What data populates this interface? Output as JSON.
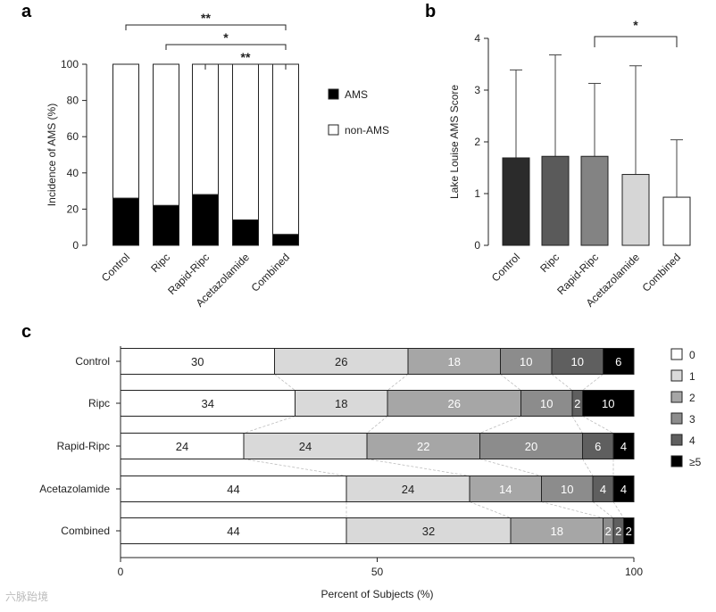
{
  "panel_labels": [
    "a",
    "b",
    "c"
  ],
  "watermark": "六脉跆境",
  "chart_data": [
    {
      "panel": "a",
      "type": "bar",
      "stacked": true,
      "categories": [
        "Control",
        "Ripc",
        "Rapid-Ripc",
        "Acetazolamide",
        "Combined"
      ],
      "series": [
        {
          "name": "AMS",
          "values": [
            26,
            22,
            28,
            14,
            6
          ],
          "color": "#000000"
        },
        {
          "name": "non-AMS",
          "values": [
            74,
            78,
            72,
            86,
            94
          ],
          "color": "#ffffff"
        }
      ],
      "ylabel": "Incidence of AMS (%)",
      "ylim": [
        0,
        100
      ],
      "yticks": [
        0,
        20,
        40,
        60,
        80,
        100
      ],
      "legend": [
        "AMS",
        "non-AMS"
      ],
      "significance": [
        {
          "from": "Control",
          "to": "Combined",
          "label": "**"
        },
        {
          "from": "Ripc",
          "to": "Combined",
          "label": "*"
        },
        {
          "from": "Rapid-Ripc",
          "to": "Combined",
          "label": "**"
        }
      ]
    },
    {
      "panel": "b",
      "type": "bar",
      "categories": [
        "Control",
        "Ripc",
        "Rapid-Ripc",
        "Acetazolamide",
        "Combined"
      ],
      "values": [
        1.69,
        1.72,
        1.72,
        1.37,
        0.93
      ],
      "errors_upper": [
        3.39,
        3.68,
        3.13,
        3.47,
        2.04
      ],
      "colors": [
        "#2b2b2b",
        "#5a5a5a",
        "#838383",
        "#d6d6d6",
        "#ffffff"
      ],
      "ylabel": "Lake Louise AMS Score",
      "ylim": [
        0,
        4
      ],
      "yticks": [
        0,
        1,
        2,
        3,
        4
      ],
      "significance": [
        {
          "from": "Rapid-Ripc",
          "to": "Combined",
          "label": "*"
        }
      ]
    },
    {
      "panel": "c",
      "type": "bar",
      "orientation": "horizontal",
      "stacked": true,
      "categories": [
        "Control",
        "Ripc",
        "Rapid-Ripc",
        "Acetazolamide",
        "Combined"
      ],
      "segment_levels": [
        "0",
        "1",
        "2",
        "3",
        "4",
        "≥5"
      ],
      "segment_colors": [
        "#ffffff",
        "#d9d9d9",
        "#a6a6a6",
        "#8c8c8c",
        "#5f5f5f",
        "#000000"
      ],
      "values": [
        [
          30,
          26,
          18,
          10,
          10,
          6
        ],
        [
          34,
          18,
          26,
          10,
          2,
          10
        ],
        [
          24,
          24,
          22,
          20,
          6,
          4
        ],
        [
          44,
          24,
          14,
          10,
          4,
          4
        ],
        [
          44,
          32,
          18,
          2,
          2,
          2
        ]
      ],
      "xlabel": "Percent of Subjects (%)",
      "xlim": [
        0,
        100
      ],
      "xticks": [
        0,
        50,
        100
      ],
      "legend": [
        "0",
        "1",
        "2",
        "3",
        "4",
        "≥5"
      ]
    }
  ]
}
